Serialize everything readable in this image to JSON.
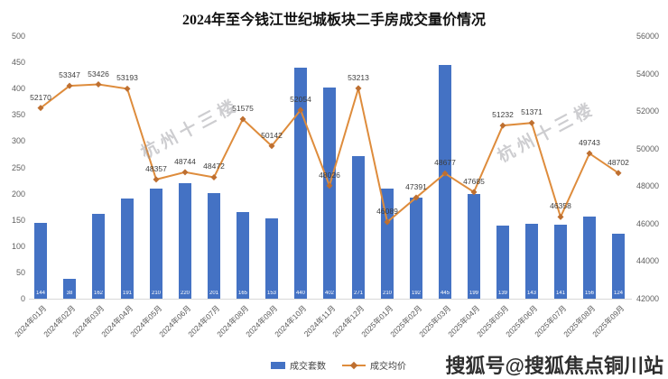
{
  "title": "2024年至今钱江世纪城板块二手房成交量价情况",
  "watermark": {
    "text": "杭州十三楼",
    "source_badge": "搜狐号@搜狐焦点铜川站"
  },
  "legend": {
    "bars": "成交套数",
    "line": "成交均价"
  },
  "colors": {
    "bar": "#4472C4",
    "line": "#DE8C3C",
    "marker": "#BE6F30"
  },
  "chart_data": {
    "type": "bar",
    "subtype": "bar+line combo, dual axis",
    "title": "2024年至今钱江世纪城板块二手房成交量价情况",
    "categories": [
      "2024年01月",
      "2024年02月",
      "2024年03月",
      "2024年04月",
      "2024年05月",
      "2024年06月",
      "2024年07月",
      "2024年08月",
      "2024年09月",
      "2024年10月",
      "2024年11月",
      "2024年12月",
      "2025年01月",
      "2025年02月",
      "2025年03月",
      "2025年04月",
      "2025年05月",
      "2025年06月",
      "2025年07月",
      "2025年08月",
      "2025年09月"
    ],
    "series": [
      {
        "name": "成交套数",
        "type": "bar",
        "axis": "left",
        "values": [
          144,
          38,
          162,
          191,
          210,
          220,
          201,
          165,
          153,
          440,
          402,
          271,
          210,
          192,
          445,
          199,
          139,
          143,
          141,
          156,
          124
        ]
      },
      {
        "name": "成交均价",
        "type": "line",
        "axis": "right",
        "values": [
          52170,
          53347,
          53426,
          53193,
          48357,
          48744,
          48472,
          51575,
          50142,
          52054,
          48026,
          53213,
          46089,
          47391,
          48677,
          47685,
          51232,
          51371,
          46358,
          49743,
          48702
        ]
      }
    ],
    "left_axis": {
      "min": 0,
      "max": 500,
      "step": 50
    },
    "right_axis": {
      "min": 42000,
      "max": 56000,
      "step": 2000
    },
    "grid": false,
    "legend_position": "bottom",
    "point_labels_shown_for": "line series only; bar values printed in white inside bar bases"
  }
}
